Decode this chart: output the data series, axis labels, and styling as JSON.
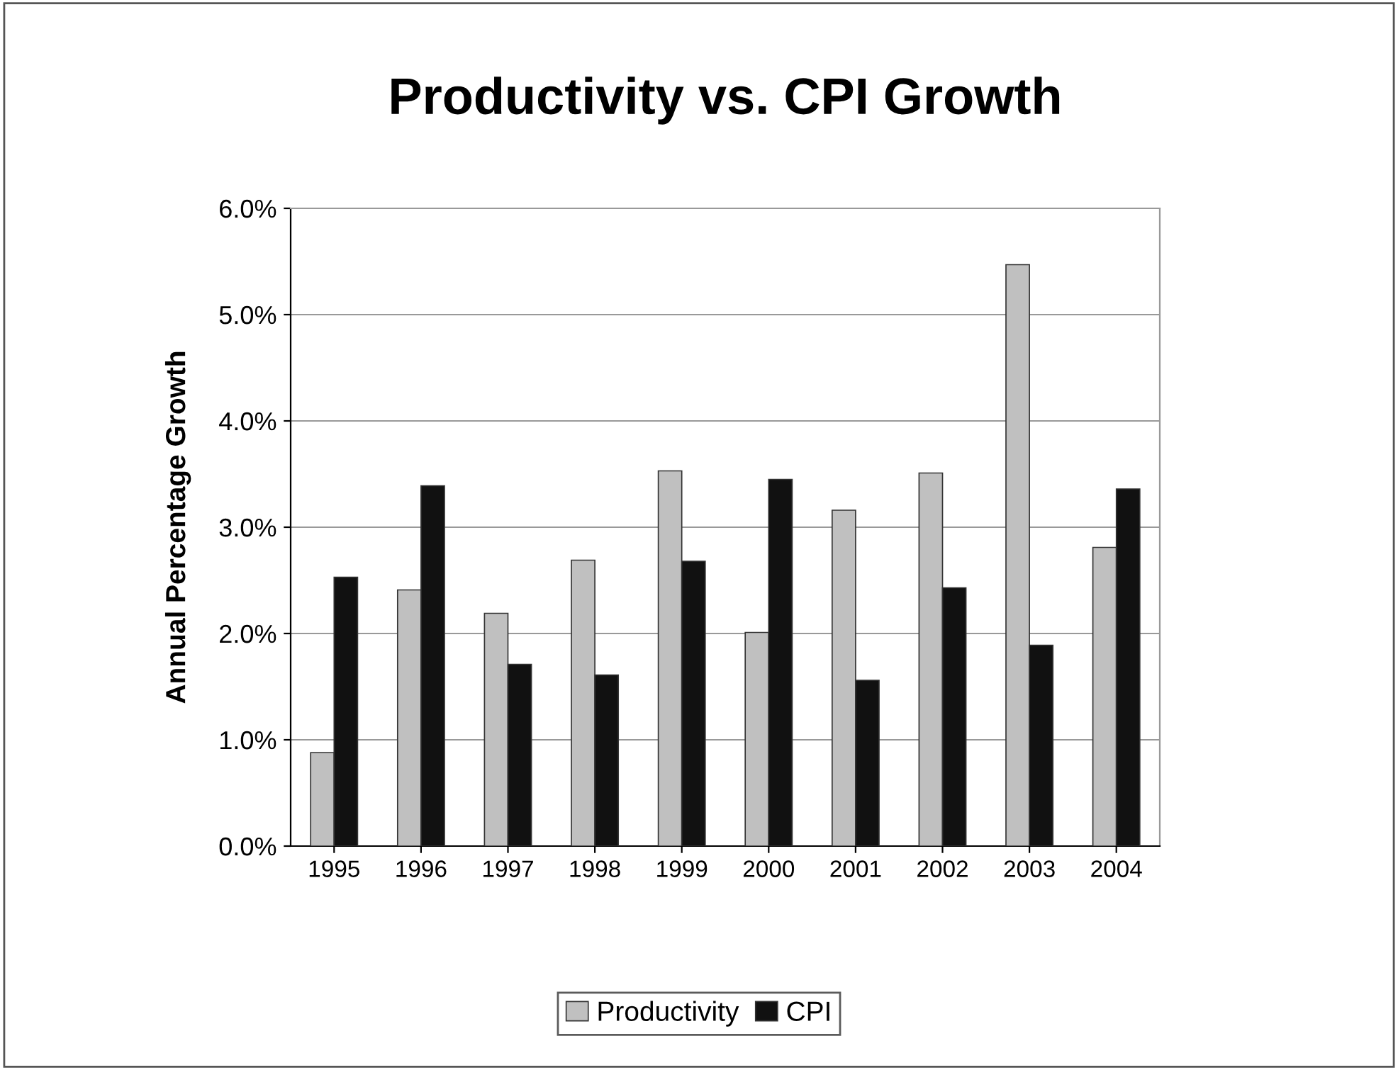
{
  "chart_data": {
    "type": "bar",
    "title": "Productivity vs. CPI Growth",
    "ylabel": "Annual Percentage Growth",
    "categories": [
      "1995",
      "1996",
      "1997",
      "1998",
      "1999",
      "2000",
      "2001",
      "2002",
      "2003",
      "2004"
    ],
    "series": [
      {
        "name": "Productivity",
        "color": "#c0c0c0",
        "values": [
          0.88,
          2.41,
          2.19,
          2.69,
          3.53,
          2.01,
          3.16,
          3.51,
          5.47,
          2.81
        ]
      },
      {
        "name": "CPI",
        "color": "#111111",
        "values": [
          2.53,
          3.39,
          1.71,
          1.61,
          2.68,
          3.45,
          1.56,
          2.43,
          1.89,
          3.36
        ]
      }
    ],
    "ylim": [
      0,
      6
    ],
    "yticks": [
      {
        "value": 0,
        "label": "0.0%"
      },
      {
        "value": 1,
        "label": "1.0%"
      },
      {
        "value": 2,
        "label": "2.0%"
      },
      {
        "value": 3,
        "label": "3.0%"
      },
      {
        "value": 4,
        "label": "4.0%"
      },
      {
        "value": 5,
        "label": "5.0%"
      },
      {
        "value": 6,
        "label": "6.0%"
      }
    ],
    "grid": "y",
    "legend": "bottom"
  }
}
